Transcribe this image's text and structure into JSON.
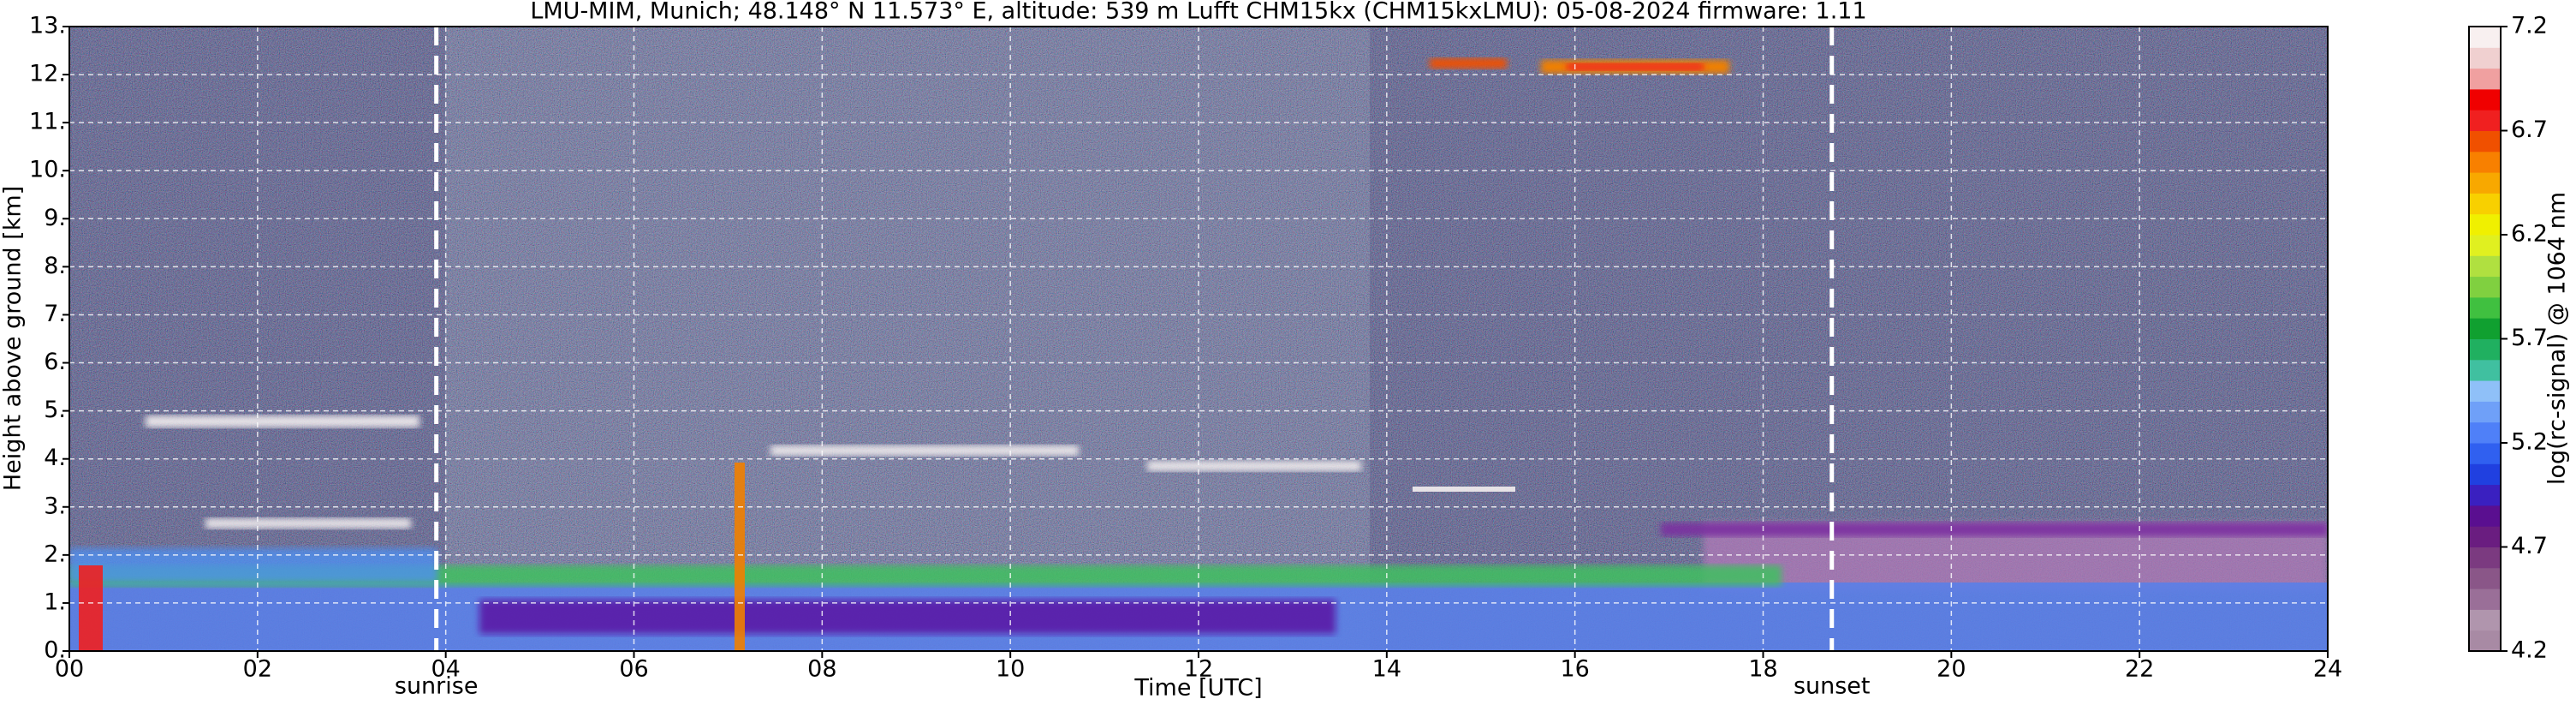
{
  "chart_data": {
    "type": "heatmap",
    "title": "LMU-MIM, Munich; 48.148° N 11.573° E, altitude: 539 m    Lufft CHM15kx (CHM15kxLMU): 05-08-2024    firmware: 1.11",
    "x_label": "Time [UTC]",
    "y_label": "Height above ground [km]",
    "xlim": [
      0,
      24
    ],
    "ylim": [
      0,
      13
    ],
    "xticks": [
      {
        "value": 0,
        "label": "00"
      },
      {
        "value": 2,
        "label": "02"
      },
      {
        "value": 4,
        "label": "04"
      },
      {
        "value": 6,
        "label": "06"
      },
      {
        "value": 8,
        "label": "08"
      },
      10,
      12,
      14,
      16,
      18,
      20,
      22,
      24
    ],
    "yticks": [
      {
        "value": 0,
        "label": "0."
      },
      {
        "value": 1,
        "label": "1."
      },
      {
        "value": 2,
        "label": "2."
      },
      {
        "value": 3,
        "label": "3."
      },
      {
        "value": 4,
        "label": "4."
      },
      {
        "value": 5,
        "label": "5."
      },
      {
        "value": 6,
        "label": "6."
      },
      {
        "value": 7,
        "label": "7."
      },
      {
        "value": 8,
        "label": "8."
      },
      {
        "value": 9,
        "label": "9."
      },
      {
        "value": 10,
        "label": "10."
      },
      {
        "value": 11,
        "label": "11."
      },
      {
        "value": 12,
        "label": "12."
      },
      {
        "value": 13,
        "label": "13."
      }
    ],
    "grid": true,
    "annotations": [
      {
        "text": "sunrise",
        "x": 3.9
      },
      {
        "text": "sunset",
        "x": 18.73
      }
    ],
    "colorbar": {
      "label": "log(rc-signal) @ 1064 nm",
      "lim": [
        4.2,
        7.2
      ],
      "ticks": [
        4.2,
        4.7,
        5.2,
        5.7,
        6.2,
        6.7,
        7.2
      ],
      "colors": [
        "#a88aa4",
        "#b095ad",
        "#9a6f98",
        "#8a5688",
        "#7b3a80",
        "#6a1d80",
        "#5a0f90",
        "#3a20c0",
        "#2040e0",
        "#3060f0",
        "#4f80f8",
        "#6fa0f8",
        "#8fc0f8",
        "#40c0a0",
        "#20b060",
        "#10a030",
        "#40c040",
        "#80d040",
        "#b0e040",
        "#e0f020",
        "#f0f000",
        "#f8d000",
        "#f8a800",
        "#f88000",
        "#f05000",
        "#f02020",
        "#f00000",
        "#f0a0a0",
        "#f0d0d0",
        "#f8f0f0"
      ]
    }
  }
}
